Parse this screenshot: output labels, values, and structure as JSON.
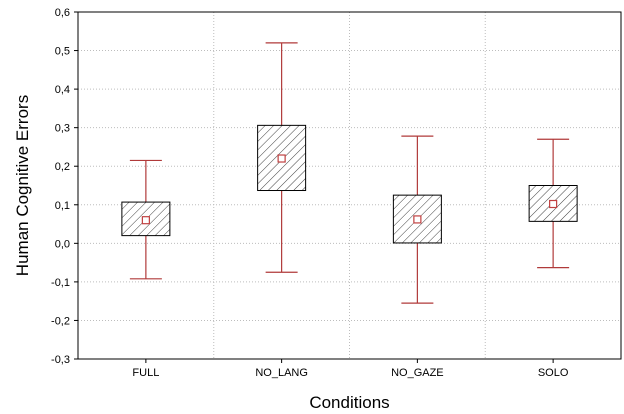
{
  "chart_data": {
    "type": "box",
    "xlabel": "Conditions",
    "ylabel": "Human Cognitive Errors",
    "ylim": [
      -0.3,
      0.6
    ],
    "y_ticks": [
      "0,6",
      "0,5",
      "0,4",
      "0,3",
      "0,2",
      "0,1",
      "0,0",
      "-0,1",
      "-0,2",
      "-0,3"
    ],
    "y_tick_values": [
      0.6,
      0.5,
      0.4,
      0.3,
      0.2,
      0.1,
      0.0,
      -0.1,
      -0.2,
      -0.3
    ],
    "grid": true,
    "categories": [
      "FULL",
      "NO_LANG",
      "NO_GAZE",
      "SOLO"
    ],
    "boxes": [
      {
        "category": "FULL",
        "whisker_low": -0.092,
        "box_low": 0.02,
        "center": 0.06,
        "box_high": 0.107,
        "whisker_high": 0.215
      },
      {
        "category": "NO_LANG",
        "whisker_low": -0.075,
        "box_low": 0.137,
        "center": 0.22,
        "box_high": 0.306,
        "whisker_high": 0.52
      },
      {
        "category": "NO_GAZE",
        "whisker_low": -0.155,
        "box_low": 0.001,
        "center": 0.062,
        "box_high": 0.125,
        "whisker_high": 0.278
      },
      {
        "category": "SOLO",
        "whisker_low": -0.063,
        "box_low": 0.057,
        "center": 0.102,
        "box_high": 0.15,
        "whisker_high": 0.27
      }
    ],
    "colors": {
      "whisker": "#b03a3a",
      "center_marker": "#c04040",
      "box_fill": "#ffffff",
      "box_hatch": "#404040",
      "grid": "#bdbdbd",
      "axis": "#000000"
    }
  }
}
